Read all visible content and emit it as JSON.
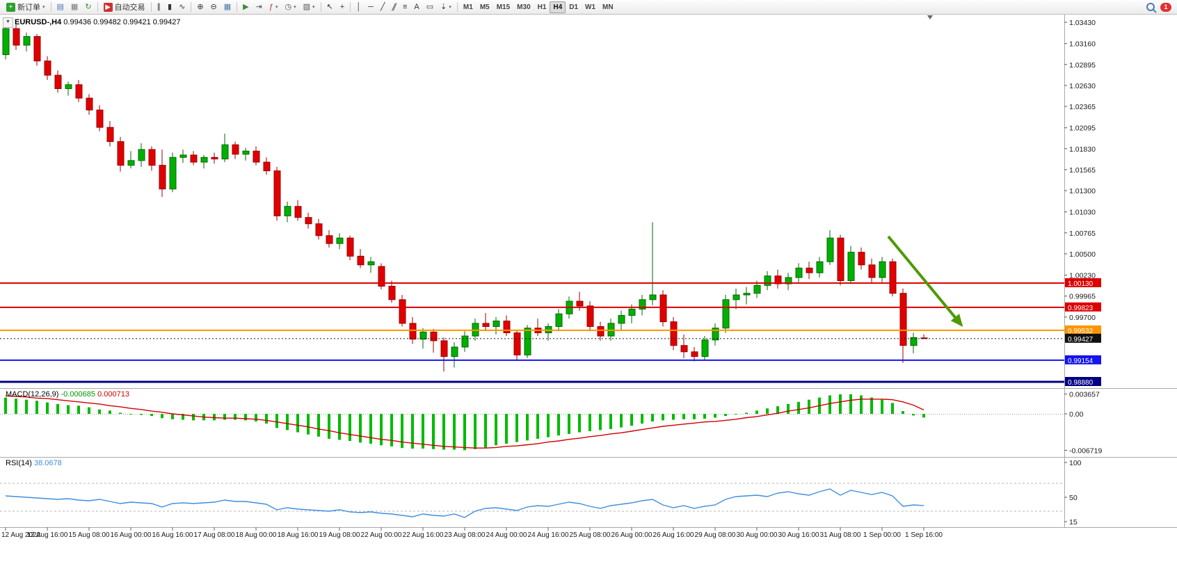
{
  "toolbar": {
    "groups": [
      {
        "items": [
          {
            "name": "new-order-button",
            "glyph": "+",
            "bg": "#2da12d",
            "label": "新订单",
            "caret": true
          }
        ]
      },
      {
        "items": [
          {
            "name": "market-watch-icon",
            "glyph": "▤",
            "color": "#4a78b0"
          },
          {
            "name": "data-window-icon",
            "glyph": "▦",
            "color": "#777"
          },
          {
            "name": "navigator-refresh-icon",
            "glyph": "↻",
            "color": "#3a8a3a"
          }
        ]
      },
      {
        "items": [
          {
            "name": "autotrading-button",
            "glyph": "▶",
            "bg": "#d03030",
            "label": "自动交易"
          }
        ]
      },
      {
        "items": [
          {
            "name": "bar-chart-icon",
            "glyph": "∥",
            "color": "#333"
          },
          {
            "name": "candlestick-chart-icon",
            "glyph": "▮",
            "color": "#333"
          },
          {
            "name": "line-chart-icon",
            "glyph": "∿",
            "color": "#333"
          }
        ]
      },
      {
        "items": [
          {
            "name": "zoom-in-icon",
            "glyph": "⊕",
            "color": "#333"
          },
          {
            "name": "zoom-out-icon",
            "glyph": "⊖",
            "color": "#333"
          },
          {
            "name": "tile-windows-icon",
            "glyph": "▦",
            "color": "#4a78b0"
          }
        ]
      },
      {
        "items": [
          {
            "name": "auto-scroll-icon",
            "glyph": "▶",
            "color": "#3a8a3a"
          },
          {
            "name": "chart-shift-icon",
            "glyph": "⇥",
            "color": "#555"
          },
          {
            "name": "indicators-icon",
            "glyph": "ƒ",
            "color": "#b03030",
            "caret": true
          },
          {
            "name": "periods-icon",
            "glyph": "◷",
            "color": "#555",
            "caret": true
          },
          {
            "name": "templates-icon",
            "glyph": "▧",
            "color": "#555",
            "caret": true
          }
        ]
      },
      {
        "items": [
          {
            "name": "cursor-icon",
            "glyph": "↖",
            "color": "#333"
          },
          {
            "name": "crosshair-icon",
            "glyph": "+",
            "color": "#333"
          }
        ]
      },
      {
        "items": [
          {
            "name": "vertical-line-icon",
            "glyph": "│",
            "color": "#333"
          },
          {
            "name": "horizontal-line-icon",
            "glyph": "─",
            "color": "#333"
          },
          {
            "name": "trendline-icon",
            "glyph": "╱",
            "color": "#333"
          },
          {
            "name": "channel-icon",
            "glyph": "∥",
            "color": "#333",
            "skew": true
          },
          {
            "name": "fibonacci-icon",
            "glyph": "≡",
            "color": "#333"
          },
          {
            "name": "text-icon",
            "glyph": "A",
            "color": "#333"
          },
          {
            "name": "label-icon",
            "glyph": "▭",
            "color": "#333"
          },
          {
            "name": "arrows-icon",
            "glyph": "⇣",
            "color": "#333",
            "caret": true
          }
        ]
      }
    ],
    "timeframes": [
      "M1",
      "M5",
      "M15",
      "M30",
      "H1",
      "H4",
      "D1",
      "W1",
      "MN"
    ],
    "active_timeframe": "H4",
    "search_badge": "1"
  },
  "chart_data": [
    {
      "type": "candlestick",
      "symbol": "EURUSD-,H4",
      "timeframe": "H4",
      "ohlc_text": "0.99436 0.99482 0.99421 0.99427",
      "ylim": [
        0.9888,
        1.0343
      ],
      "y_ticks": [
        1.0343,
        1.0316,
        1.02895,
        1.0263,
        1.02365,
        1.02095,
        1.0183,
        1.01565,
        1.013,
        1.0103,
        1.00765,
        1.005,
        1.0023,
        0.99965,
        0.997
      ],
      "x_label_step": 4,
      "x_labels": [
        "12 Aug 2022",
        "12 Aug 16:00",
        "15 Aug 08:00",
        "16 Aug 00:00",
        "16 Aug 16:00",
        "17 Aug 08:00",
        "18 Aug 00:00",
        "18 Aug 16:00",
        "19 Aug 08:00",
        "22 Aug 00:00",
        "22 Aug 16:00",
        "23 Aug 08:00",
        "24 Aug 00:00",
        "24 Aug 16:00",
        "25 Aug 08:00",
        "26 Aug 00:00",
        "26 Aug 16:00",
        "29 Aug 08:00",
        "30 Aug 00:00",
        "30 Aug 16:00",
        "31 Aug 08:00",
        "1 Sep 00:00",
        "1 Sep 16:00"
      ],
      "up_color": "#00b000",
      "down_color": "#e00000",
      "candles": [
        [
          1.0302,
          1.0343,
          1.0296,
          1.0335
        ],
        [
          1.0335,
          1.034,
          1.0308,
          1.0314
        ],
        [
          1.0314,
          1.033,
          1.0306,
          1.0325
        ],
        [
          1.0325,
          1.0328,
          1.0288,
          1.0294
        ],
        [
          1.0294,
          1.03,
          1.027,
          1.0276
        ],
        [
          1.0276,
          1.0282,
          1.0254,
          1.0259
        ],
        [
          1.0259,
          1.0268,
          1.025,
          1.0264
        ],
        [
          1.0264,
          1.027,
          1.0242,
          1.0247
        ],
        [
          1.0247,
          1.0252,
          1.0226,
          1.0232
        ],
        [
          1.0232,
          1.0238,
          1.0205,
          1.021
        ],
        [
          1.021,
          1.0218,
          1.0186,
          1.0192
        ],
        [
          1.0192,
          1.0198,
          1.0154,
          1.0162
        ],
        [
          1.0162,
          1.018,
          1.0158,
          1.0168
        ],
        [
          1.0168,
          1.019,
          1.016,
          1.0182
        ],
        [
          1.0182,
          1.0186,
          1.0155,
          1.0162
        ],
        [
          1.0162,
          1.0182,
          1.0122,
          1.0132
        ],
        [
          1.0132,
          1.0178,
          1.0128,
          1.0172
        ],
        [
          1.0172,
          1.0182,
          1.0165,
          1.0175
        ],
        [
          1.0175,
          1.018,
          1.0162,
          1.0166
        ],
        [
          1.0166,
          1.0175,
          1.0158,
          1.0172
        ],
        [
          1.0172,
          1.0178,
          1.0164,
          1.017
        ],
        [
          1.017,
          1.0202,
          1.0166,
          1.0188
        ],
        [
          1.0188,
          1.0192,
          1.017,
          1.0176
        ],
        [
          1.0176,
          1.0184,
          1.0168,
          1.018
        ],
        [
          1.018,
          1.0186,
          1.0162,
          1.0166
        ],
        [
          1.0166,
          1.0172,
          1.015,
          1.0155
        ],
        [
          1.0155,
          1.016,
          1.0092,
          1.0098
        ],
        [
          1.0098,
          1.0116,
          1.009,
          1.011
        ],
        [
          1.011,
          1.0118,
          1.0092,
          1.0096
        ],
        [
          1.0096,
          1.0102,
          1.0082,
          1.0088
        ],
        [
          1.0088,
          1.0094,
          1.0068,
          1.0073
        ],
        [
          1.0073,
          1.008,
          1.0058,
          1.0063
        ],
        [
          1.0063,
          1.0076,
          1.0056,
          1.007
        ],
        [
          1.007,
          1.0073,
          1.0042,
          1.0047
        ],
        [
          1.0047,
          1.0056,
          1.0032,
          1.0036
        ],
        [
          1.0036,
          1.0046,
          1.0026,
          1.004
        ],
        [
          1.0034,
          1.0038,
          1.0005,
          1.0009
        ],
        [
          1.0009,
          1.0016,
          0.9988,
          0.9992
        ],
        [
          0.9992,
          0.9998,
          0.9958,
          0.9962
        ],
        [
          0.9962,
          0.997,
          0.9936,
          0.9942
        ],
        [
          0.9942,
          0.9956,
          0.993,
          0.9951
        ],
        [
          0.9951,
          0.9955,
          0.9925,
          0.994
        ],
        [
          0.994,
          0.9944,
          0.9901,
          0.992
        ],
        [
          0.992,
          0.9938,
          0.9906,
          0.9932
        ],
        [
          0.9932,
          0.9952,
          0.9926,
          0.9946
        ],
        [
          0.9946,
          0.9968,
          0.994,
          0.9962
        ],
        [
          0.9962,
          0.9975,
          0.9952,
          0.9958
        ],
        [
          0.9958,
          0.997,
          0.9948,
          0.9965
        ],
        [
          0.9965,
          0.9972,
          0.9946,
          0.995
        ],
        [
          0.995,
          0.9954,
          0.9916,
          0.9922
        ],
        [
          0.9922,
          0.996,
          0.9918,
          0.9956
        ],
        [
          0.9956,
          0.9968,
          0.9946,
          0.995
        ],
        [
          0.995,
          0.9962,
          0.994,
          0.9958
        ],
        [
          0.9958,
          0.998,
          0.9952,
          0.9974
        ],
        [
          0.9974,
          0.9996,
          0.9968,
          0.999
        ],
        [
          0.999,
          1.0002,
          0.9978,
          0.9984
        ],
        [
          0.9984,
          0.999,
          0.9952,
          0.9958
        ],
        [
          0.9958,
          0.9964,
          0.994,
          0.9946
        ],
        [
          0.9946,
          0.9968,
          0.994,
          0.9962
        ],
        [
          0.9962,
          0.9978,
          0.9954,
          0.9972
        ],
        [
          0.9972,
          0.9986,
          0.9962,
          0.998
        ],
        [
          0.998,
          0.9998,
          0.9972,
          0.9992
        ],
        [
          0.9992,
          1.009,
          0.9985,
          0.9998
        ],
        [
          0.9998,
          1.0004,
          0.9958,
          0.9964
        ],
        [
          0.9964,
          0.997,
          0.9928,
          0.9934
        ],
        [
          0.9934,
          0.9948,
          0.9918,
          0.9926
        ],
        [
          0.9926,
          0.9932,
          0.9914,
          0.992
        ],
        [
          0.992,
          0.9946,
          0.9915,
          0.9941
        ],
        [
          0.9941,
          0.9962,
          0.9934,
          0.9956
        ],
        [
          0.9956,
          0.9998,
          0.995,
          0.9992
        ],
        [
          0.9992,
          1.0006,
          0.998,
          0.9998
        ],
        [
          0.9998,
          1.0008,
          0.9986,
          1.0
        ],
        [
          1.0,
          1.0016,
          0.9994,
          1.001
        ],
        [
          1.001,
          1.0028,
          1.0004,
          1.0022
        ],
        [
          1.0022,
          1.003,
          1.0006,
          1.0012
        ],
        [
          1.0012,
          1.0026,
          1.0004,
          1.002
        ],
        [
          1.002,
          1.0038,
          1.0014,
          1.0032
        ],
        [
          1.0032,
          1.004,
          1.0018,
          1.0026
        ],
        [
          1.0026,
          1.0046,
          1.002,
          1.004
        ],
        [
          1.004,
          1.008,
          1.0036,
          1.007
        ],
        [
          1.007,
          1.0074,
          1.001,
          1.0016
        ],
        [
          1.0016,
          1.006,
          1.0012,
          1.0052
        ],
        [
          1.0052,
          1.0058,
          1.003,
          1.0036
        ],
        [
          1.0036,
          1.0044,
          1.0014,
          1.002
        ],
        [
          1.002,
          1.0046,
          1.0014,
          1.004
        ],
        [
          1.004,
          1.0044,
          0.9996,
          1.0
        ],
        [
          1.0,
          1.0006,
          0.9912,
          0.9934
        ],
        [
          0.9934,
          0.995,
          0.9924,
          0.9944
        ],
        [
          0.99436,
          0.99482,
          0.99421,
          0.99427
        ]
      ],
      "hlines": [
        {
          "price": 1.0013,
          "label": "1.00130",
          "color": "#dd0000",
          "width": 2
        },
        {
          "price": 0.99823,
          "label": "0.99823",
          "color": "#dd0000",
          "width": 2
        },
        {
          "price": 0.99532,
          "label": "0.99532",
          "color": "#ff9500",
          "width": 2
        },
        {
          "price": 0.99427,
          "label": "0.99427",
          "color": "#111111",
          "width": 1,
          "dashed": true
        },
        {
          "price": 0.99154,
          "label": "0.99154",
          "color": "#1414ee",
          "width": 2
        },
        {
          "price": 0.9888,
          "label": "0.98880",
          "color": "#000080",
          "width": 3
        }
      ],
      "arrow": {
        "from": {
          "index": 84.6,
          "price": 1.0072
        },
        "to": {
          "index": 91.6,
          "price": 0.996
        },
        "color": "#4e9a06"
      }
    },
    {
      "type": "bar",
      "name": "MACD",
      "label": "MACD(12,26,9)",
      "value1": "-0.000685",
      "value2": "0.000713",
      "bar_color": "#00bb00",
      "signal_color": "#d00000",
      "y_ticks": [
        {
          "v": 0.003657,
          "label": "0.003657"
        },
        {
          "v": 0,
          "label": "0.00"
        },
        {
          "v": -0.006719,
          "label": "-0.006719"
        }
      ],
      "macd": [
        0.003,
        0.0028,
        0.0026,
        0.0024,
        0.0021,
        0.0018,
        0.0016,
        0.0015,
        0.0012,
        0.0008,
        0.0006,
        0.0002,
        0.0,
        -0.0002,
        -0.0004,
        -0.0008,
        -0.001,
        -0.0011,
        -0.0012,
        -0.0012,
        -0.0012,
        -0.0011,
        -0.0011,
        -0.0012,
        -0.0014,
        -0.0018,
        -0.0026,
        -0.003,
        -0.0034,
        -0.0038,
        -0.0042,
        -0.0046,
        -0.0048,
        -0.005,
        -0.0053,
        -0.0055,
        -0.0058,
        -0.006,
        -0.0063,
        -0.0064,
        -0.0064,
        -0.0065,
        -0.0066,
        -0.0066,
        -0.0067,
        -0.0065,
        -0.0062,
        -0.0058,
        -0.0055,
        -0.0052,
        -0.0049,
        -0.0046,
        -0.0043,
        -0.004,
        -0.0037,
        -0.0034,
        -0.0032,
        -0.003,
        -0.0028,
        -0.0025,
        -0.0022,
        -0.0018,
        -0.0014,
        -0.0012,
        -0.0011,
        -0.001,
        -0.001,
        -0.0009,
        -0.0007,
        -0.0004,
        -0.0001,
        0.0002,
        0.0006,
        0.001,
        0.0014,
        0.0018,
        0.0022,
        0.0026,
        0.003,
        0.0034,
        0.0036,
        0.0036,
        0.0034,
        0.003,
        0.0026,
        0.002,
        0.0005,
        -0.0003,
        -0.000685
      ],
      "signal": [
        0.0033,
        0.0032,
        0.0031,
        0.0029,
        0.0028,
        0.0026,
        0.0024,
        0.0022,
        0.002,
        0.0018,
        0.0015,
        0.0013,
        0.001,
        0.0008,
        0.0005,
        0.0003,
        0.0,
        -0.0002,
        -0.0004,
        -0.0006,
        -0.0007,
        -0.0008,
        -0.0008,
        -0.0009,
        -0.001,
        -0.0012,
        -0.0015,
        -0.0018,
        -0.0021,
        -0.0024,
        -0.0028,
        -0.0031,
        -0.0035,
        -0.0038,
        -0.0041,
        -0.0044,
        -0.0047,
        -0.0049,
        -0.0052,
        -0.0054,
        -0.0056,
        -0.0058,
        -0.006,
        -0.0061,
        -0.0062,
        -0.0063,
        -0.0063,
        -0.0062,
        -0.006,
        -0.0059,
        -0.0057,
        -0.0055,
        -0.0052,
        -0.005,
        -0.0047,
        -0.0045,
        -0.0042,
        -0.004,
        -0.0037,
        -0.0035,
        -0.0032,
        -0.0029,
        -0.0026,
        -0.0023,
        -0.0021,
        -0.0019,
        -0.0017,
        -0.0015,
        -0.0014,
        -0.0012,
        -0.001,
        -0.0007,
        -0.0005,
        -0.0002,
        0.0001,
        0.0005,
        0.0008,
        0.0011,
        0.0015,
        0.0019,
        0.0022,
        0.0025,
        0.0027,
        0.0027,
        0.0027,
        0.0026,
        0.0022,
        0.0016,
        0.000713
      ]
    },
    {
      "type": "line",
      "name": "RSI",
      "label": "RSI(14)",
      "value": "38.0678",
      "line_color": "#3e8ede",
      "levels": [
        70,
        30
      ],
      "y_ticks": [
        {
          "v": 100,
          "label": "100"
        },
        {
          "v": 50,
          "label": "50"
        },
        {
          "v": 15,
          "label": "15"
        }
      ],
      "values": [
        52,
        51,
        50,
        49,
        48,
        47,
        48,
        46,
        45,
        47,
        44,
        41,
        43,
        42,
        41,
        36,
        41,
        42,
        41,
        42,
        43,
        46,
        44,
        44,
        42,
        40,
        32,
        35,
        33,
        32,
        31,
        30,
        32,
        29,
        28,
        29,
        27,
        26,
        24,
        22,
        26,
        24,
        23,
        26,
        21,
        30,
        34,
        35,
        33,
        31,
        36,
        38,
        37,
        40,
        43,
        41,
        37,
        34,
        38,
        40,
        42,
        45,
        47,
        39,
        35,
        38,
        34,
        37,
        39,
        47,
        51,
        52,
        53,
        51,
        56,
        58,
        55,
        53,
        58,
        62,
        53,
        60,
        57,
        54,
        57,
        52,
        37,
        39,
        38.0678
      ]
    }
  ]
}
